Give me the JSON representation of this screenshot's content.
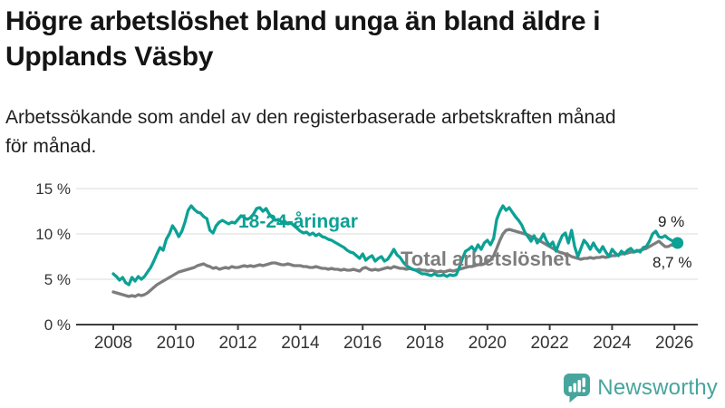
{
  "header": {
    "title_lines": [
      "Högre arbetslöshet bland unga än bland äldre i",
      "Upplands Väsby"
    ],
    "subtitle_lines": [
      "Arbetssökande som andel av den registerbaserade arbetskraften månad",
      "för månad."
    ]
  },
  "chart_data": {
    "type": "line",
    "title": "Högre arbetslöshet bland unga än bland äldre i Upplands Väsby",
    "subtitle": "Arbetssökande som andel av den registerbaserade arbetskraften månad för månad.",
    "unit": "%",
    "grid": "horizontal",
    "xlim": [
      2006.8,
      2026.8
    ],
    "ylim": [
      0,
      15.8
    ],
    "x_tick_values": [
      2008,
      2010,
      2012,
      2014,
      2016,
      2018,
      2020,
      2022,
      2024,
      2026
    ],
    "x_tick_labels": [
      "2008",
      "2010",
      "2012",
      "2014",
      "2016",
      "2018",
      "2020",
      "2022",
      "2024",
      "2026"
    ],
    "y_tick_values": [
      0,
      5,
      10,
      15
    ],
    "y_tick_labels": [
      "0 %",
      "5 %",
      "10 %",
      "15 %"
    ],
    "x_start": 2008.0,
    "x_step": 0.1,
    "axis_color": "#3d3d3d",
    "grid_color": "#e2e2e2",
    "tick_text_color": "#333333",
    "series": [
      {
        "name": "18-24-åringar",
        "color": "#0da195",
        "end_dot": true,
        "latest_label": "9 %",
        "values": [
          5.6,
          5.3,
          4.9,
          5.2,
          4.6,
          4.4,
          5.2,
          4.8,
          5.3,
          5.0,
          5.3,
          5.8,
          6.3,
          7.0,
          7.8,
          8.5,
          8.2,
          9.4,
          10.0,
          10.9,
          10.4,
          9.7,
          10.3,
          11.3,
          12.6,
          13.1,
          12.7,
          12.4,
          12.3,
          11.9,
          11.7,
          10.4,
          10.1,
          10.9,
          11.3,
          11.5,
          11.3,
          11.1,
          11.3,
          11.2,
          11.6,
          12.0,
          11.8,
          11.6,
          11.8,
          12.2,
          12.8,
          12.9,
          12.5,
          12.8,
          12.2,
          11.8,
          11.5,
          11.6,
          11.3,
          11.4,
          11.1,
          11.2,
          10.9,
          10.6,
          10.3,
          10.1,
          10.2,
          9.9,
          10.1,
          9.8,
          10.0,
          9.7,
          9.6,
          9.4,
          9.3,
          9.1,
          8.9,
          8.7,
          8.5,
          8.2,
          8.0,
          7.9,
          7.6,
          7.3,
          7.8,
          7.1,
          7.4,
          7.6,
          7.0,
          7.3,
          7.5,
          7.0,
          7.2,
          7.7,
          8.3,
          7.7,
          7.4,
          6.9,
          6.5,
          6.3,
          6.1,
          6.0,
          5.8,
          5.6,
          5.6,
          5.5,
          5.4,
          5.6,
          5.4,
          5.4,
          5.5,
          5.3,
          5.5,
          5.4,
          5.5,
          6.3,
          7.3,
          8.1,
          8.3,
          8.6,
          8.1,
          8.8,
          8.3,
          9.0,
          9.3,
          8.8,
          9.5,
          11.6,
          12.5,
          13.1,
          12.6,
          12.9,
          12.4,
          11.9,
          11.5,
          11.0,
          10.2,
          9.7,
          9.2,
          9.8,
          9.0,
          9.4,
          10.0,
          9.2,
          8.7,
          9.1,
          8.1,
          9.0,
          9.8,
          10.1,
          9.0,
          10.4,
          8.6,
          7.5,
          8.4,
          9.3,
          8.9,
          8.3,
          9.0,
          8.4,
          8.0,
          8.6,
          8.0,
          7.5,
          8.3,
          7.9,
          7.6,
          8.1,
          7.8,
          8.2,
          8.4,
          8.0,
          8.2,
          8.0,
          8.5,
          8.6,
          9.2,
          10.0,
          10.3,
          9.7,
          9.6,
          9.8,
          9.5,
          9.3,
          9.1,
          9.0
        ]
      },
      {
        "name": "Total arbetslöshet",
        "color": "#7d7d7d",
        "end_dot": false,
        "latest_label": "8,7 %",
        "values": [
          3.6,
          3.5,
          3.4,
          3.3,
          3.2,
          3.1,
          3.2,
          3.1,
          3.3,
          3.2,
          3.3,
          3.5,
          3.8,
          4.1,
          4.4,
          4.6,
          4.8,
          5.0,
          5.2,
          5.4,
          5.6,
          5.8,
          5.9,
          6.0,
          6.1,
          6.2,
          6.3,
          6.5,
          6.6,
          6.7,
          6.5,
          6.4,
          6.2,
          6.3,
          6.1,
          6.2,
          6.3,
          6.2,
          6.4,
          6.3,
          6.3,
          6.4,
          6.5,
          6.4,
          6.5,
          6.4,
          6.5,
          6.6,
          6.5,
          6.6,
          6.7,
          6.8,
          6.8,
          6.7,
          6.6,
          6.6,
          6.7,
          6.6,
          6.5,
          6.5,
          6.5,
          6.4,
          6.4,
          6.3,
          6.3,
          6.4,
          6.3,
          6.2,
          6.2,
          6.1,
          6.2,
          6.1,
          6.1,
          6.0,
          6.1,
          6.0,
          6.0,
          6.1,
          6.0,
          5.9,
          6.2,
          6.3,
          6.1,
          6.0,
          6.1,
          6.0,
          6.1,
          6.2,
          6.3,
          6.2,
          6.4,
          6.3,
          6.2,
          6.2,
          6.1,
          6.2,
          6.1,
          6.0,
          6.1,
          6.0,
          6.0,
          5.9,
          6.0,
          5.9,
          5.8,
          5.9,
          5.8,
          5.9,
          6.0,
          5.9,
          6.0,
          6.1,
          6.2,
          6.3,
          6.4,
          6.4,
          6.5,
          6.6,
          6.6,
          6.7,
          6.9,
          7.1,
          7.6,
          8.4,
          9.3,
          10.0,
          10.4,
          10.5,
          10.4,
          10.3,
          10.2,
          10.1,
          10.0,
          9.9,
          9.7,
          9.6,
          9.4,
          9.2,
          9.0,
          8.8,
          8.6,
          8.4,
          8.2,
          8.0,
          7.9,
          7.8,
          7.7,
          7.5,
          7.4,
          7.3,
          7.2,
          7.3,
          7.3,
          7.4,
          7.3,
          7.4,
          7.4,
          7.5,
          7.4,
          7.5,
          7.6,
          7.6,
          7.7,
          7.8,
          7.8,
          7.9,
          8.0,
          8.0,
          8.1,
          8.2,
          8.3,
          8.4,
          8.6,
          8.8,
          9.0,
          9.2,
          8.9,
          8.6,
          8.6,
          8.8,
          8.7,
          8.7
        ]
      }
    ],
    "annotations": [
      {
        "text": "9 %"
      },
      {
        "text": "8,7 %"
      }
    ],
    "legend_position": "inline-labels"
  },
  "footer": {
    "brand": "Newsworthy",
    "brand_color": "#46a59d"
  }
}
